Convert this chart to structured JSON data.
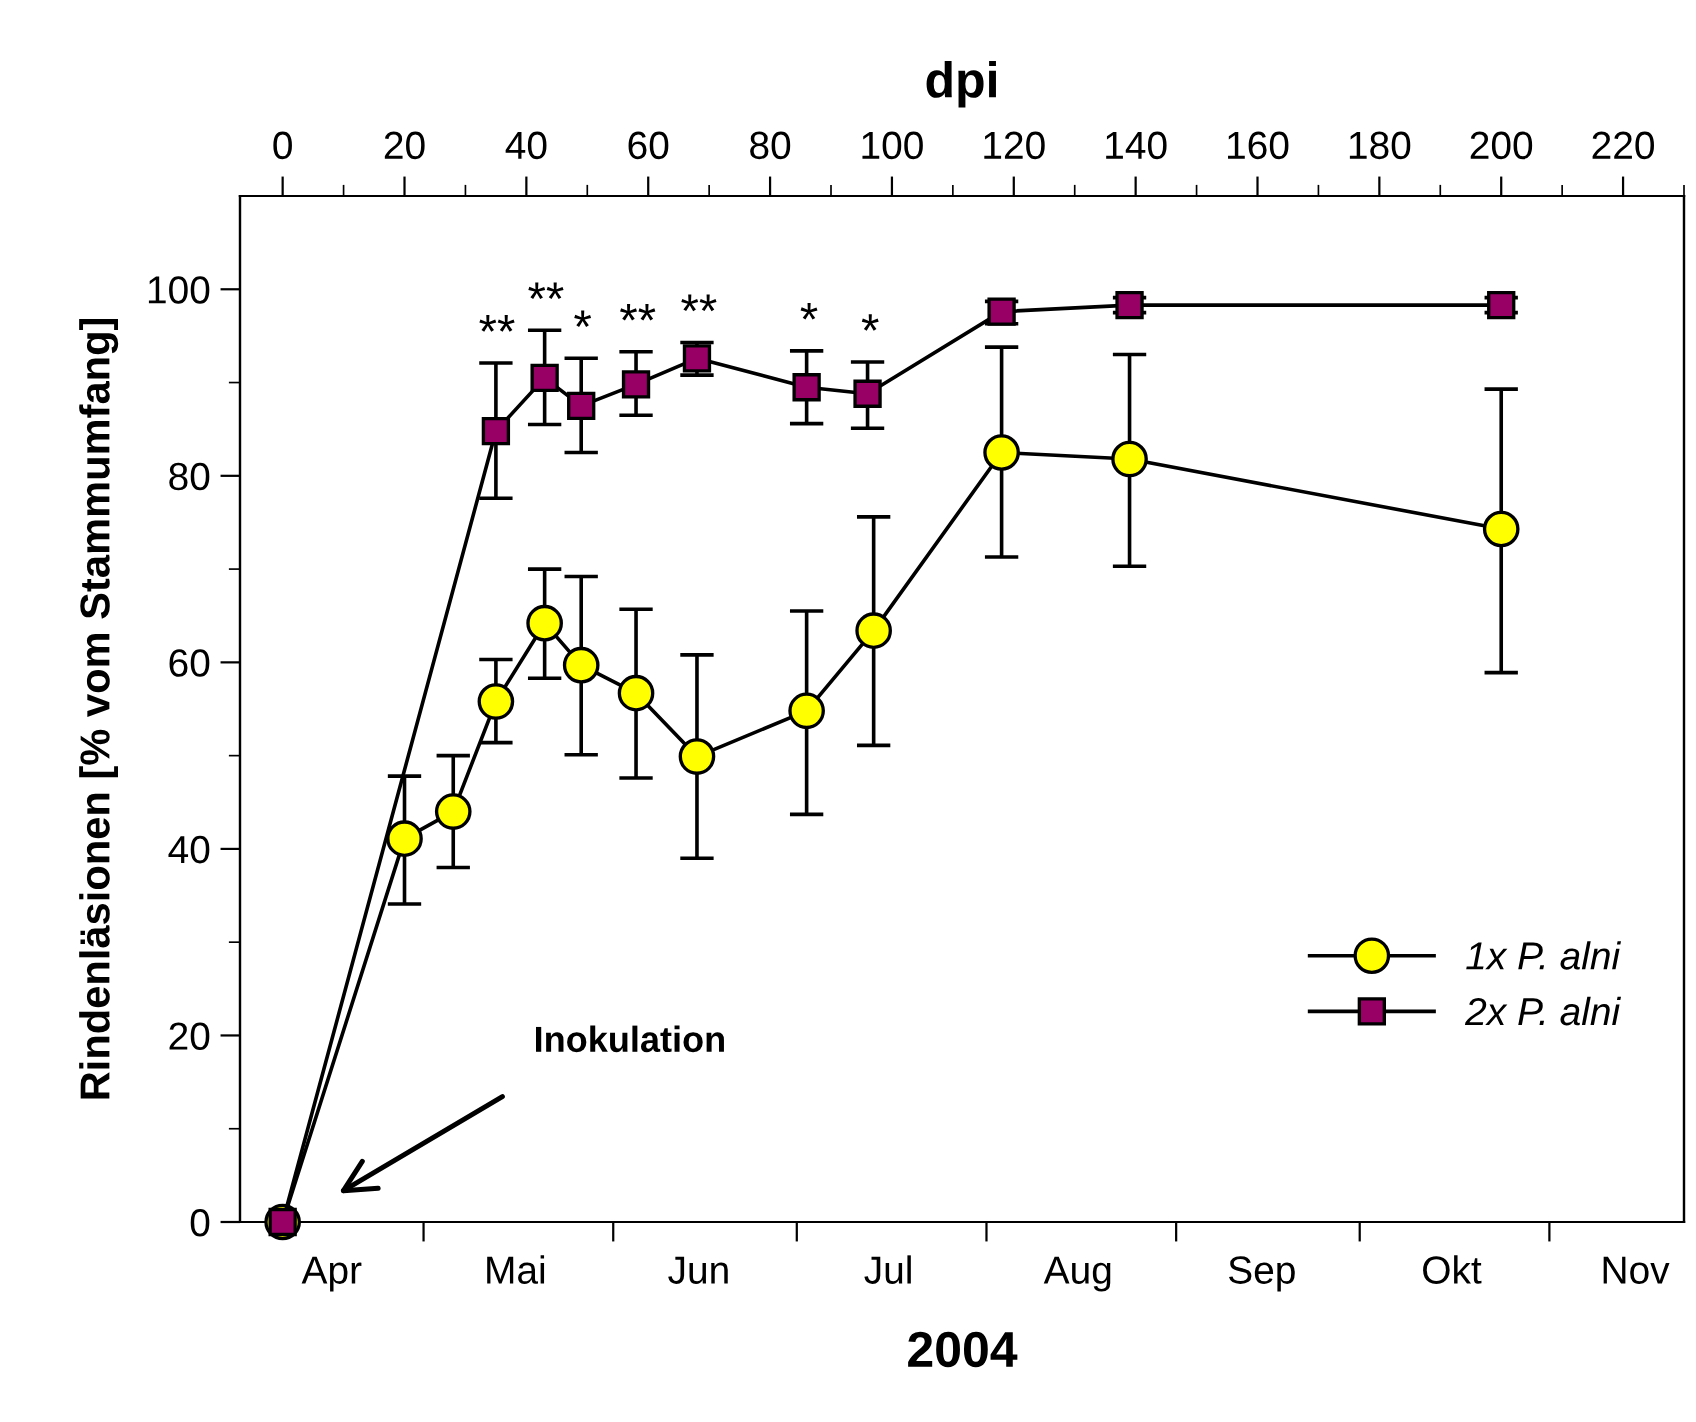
{
  "chart_data": {
    "type": "line",
    "xlabel": "2004",
    "x2label": "dpi",
    "ylabel": "Rindenläsionen [% vom Stammumfang]",
    "xlim": [
      "2004-04-01",
      "2004-11-23"
    ],
    "x2lim": [
      -7,
      230
    ],
    "ylim": [
      0,
      110
    ],
    "xticks": [
      {
        "value": "2004-04-16",
        "label": "Apr"
      },
      {
        "value": "2004-05-01",
        "label": null
      },
      {
        "value": "2004-05-16",
        "label": "Mai"
      },
      {
        "value": "2004-06-01",
        "label": null
      },
      {
        "value": "2004-06-15",
        "label": "Jun"
      },
      {
        "value": "2004-07-01",
        "label": null
      },
      {
        "value": "2004-07-16",
        "label": "Jul"
      },
      {
        "value": "2004-08-01",
        "label": null
      },
      {
        "value": "2004-08-16",
        "label": "Aug"
      },
      {
        "value": "2004-09-01",
        "label": null
      },
      {
        "value": "2004-09-15",
        "label": "Sep"
      },
      {
        "value": "2004-10-01",
        "label": null
      },
      {
        "value": "2004-10-16",
        "label": "Okt"
      },
      {
        "value": "2004-11-01",
        "label": null
      },
      {
        "value": "2004-11-15",
        "label": "Nov"
      }
    ],
    "x2ticks": [
      0,
      {
        "value": 10,
        "label": null
      },
      20,
      {
        "value": 30,
        "label": null
      },
      40,
      {
        "value": 50,
        "label": null
      },
      60,
      {
        "value": 70,
        "label": null
      },
      80,
      {
        "value": 90,
        "label": null
      },
      100,
      {
        "value": 110,
        "label": null
      },
      120,
      {
        "value": 130,
        "label": null
      },
      140,
      {
        "value": 150,
        "label": null
      },
      160,
      {
        "value": 170,
        "label": null
      },
      180,
      {
        "value": 190,
        "label": null
      },
      200,
      {
        "value": 210,
        "label": null
      },
      220,
      {
        "value": 230,
        "label": null
      }
    ],
    "yticks": [
      0,
      {
        "value": 10,
        "label": null
      },
      20,
      {
        "value": 30,
        "label": null
      },
      40,
      {
        "value": 50,
        "label": null
      },
      60,
      {
        "value": 70,
        "label": null
      },
      80,
      {
        "value": 90,
        "label": null
      },
      100
    ],
    "grid": false,
    "legend": "bottom right",
    "line_style": "solid",
    "series": [
      {
        "name": "1x P. alni",
        "axis": "x2",
        "color": "#ffff00",
        "marker": "circle",
        "x": [
          0,
          20,
          28,
          35,
          43,
          49,
          58,
          68,
          86,
          97,
          118,
          139,
          200
        ],
        "values": [
          0,
          41.1,
          44.0,
          55.8,
          64.2,
          59.7,
          56.7,
          49.9,
          54.8,
          63.4,
          82.5,
          81.8,
          74.3
        ],
        "errors": [
          null,
          [
            34.1,
            47.8
          ],
          [
            38.0,
            50.0
          ],
          [
            51.4,
            60.3
          ],
          [
            58.3,
            70.0
          ],
          [
            50.1,
            69.2
          ],
          [
            47.6,
            65.7
          ],
          [
            39.0,
            60.8
          ],
          [
            43.7,
            65.5
          ],
          [
            51.1,
            75.6
          ],
          [
            71.3,
            93.8
          ],
          [
            70.3,
            93.0
          ],
          [
            58.9,
            89.3
          ]
        ]
      },
      {
        "name": "2x P. alni",
        "axis": "x2",
        "color": "#990066",
        "marker": "square",
        "x": [
          0,
          35,
          43,
          49,
          58,
          68,
          86,
          96,
          118,
          139,
          200
        ],
        "values": [
          0,
          84.8,
          90.5,
          87.5,
          89.8,
          92.6,
          89.5,
          88.8,
          97.6,
          98.3,
          98.3
        ],
        "errors": [
          null,
          [
            77.6,
            92.1
          ],
          [
            85.5,
            95.6
          ],
          [
            82.5,
            92.6
          ],
          [
            86.5,
            93.3
          ],
          [
            90.8,
            94.3
          ],
          [
            85.6,
            93.4
          ],
          [
            85.1,
            92.2
          ],
          [
            96.3,
            98.7
          ],
          [
            97.5,
            99.1
          ],
          [
            97.5,
            99.1
          ]
        ]
      }
    ],
    "annotations": [
      {
        "text": "**",
        "x": "2004-05-13",
        "y": 84.8
      },
      {
        "text": "**",
        "x": "2004-05-21",
        "y": 90.5
      },
      {
        "text": "*",
        "x": "2004-05-27",
        "y": 87.5
      },
      {
        "text": "**",
        "x": "2004-06-05",
        "y": 89.8
      },
      {
        "text": "**",
        "x": "2004-06-15",
        "y": 92.6
      },
      {
        "text": "*",
        "x": "2004-07-03",
        "y": 89.5
      },
      {
        "text": "*",
        "x": "2004-07-13",
        "y": 88.8
      },
      "Inokulation"
    ]
  }
}
